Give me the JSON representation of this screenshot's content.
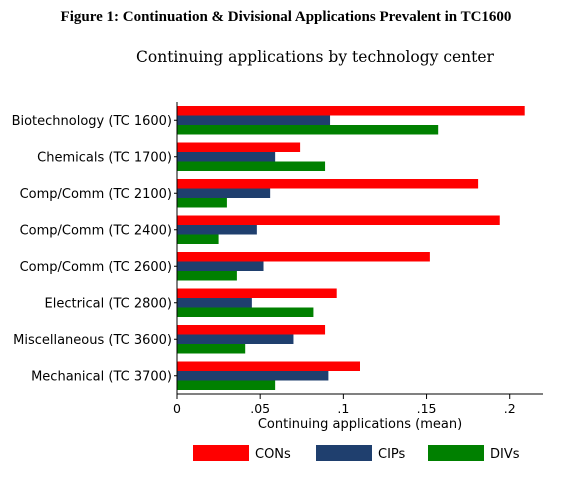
{
  "figure_caption": "Figure 1: Continuation & Divisional Applications Prevalent in TC1600",
  "chart_data": {
    "type": "bar",
    "orientation": "horizontal",
    "title": "Continuing applications by technology center",
    "xlabel": "Continuing applications (mean)",
    "ylabel": "",
    "xlim": [
      0,
      0.22
    ],
    "xticks": [
      0,
      0.05,
      0.1,
      0.15,
      0.2
    ],
    "xtick_labels": [
      "0",
      ".05",
      ".1",
      ".15",
      ".2"
    ],
    "grid": false,
    "legend_position": "bottom",
    "categories": [
      "Biotechnology (TC 1600)",
      "Chemicals (TC 1700)",
      "Comp/Comm (TC 2100)",
      "Comp/Comm (TC 2400)",
      "Comp/Comm (TC 2600)",
      "Electrical (TC 2800)",
      "Miscellaneous (TC 3600)",
      "Mechanical (TC 3700)"
    ],
    "series": [
      {
        "name": "CONs",
        "color": "#ff0000",
        "values": [
          0.209,
          0.074,
          0.181,
          0.194,
          0.152,
          0.096,
          0.089,
          0.11
        ]
      },
      {
        "name": "CIPs",
        "color": "#1f3f6e",
        "values": [
          0.092,
          0.059,
          0.056,
          0.048,
          0.052,
          0.045,
          0.07,
          0.091
        ]
      },
      {
        "name": "DIVs",
        "color": "#008000",
        "values": [
          0.157,
          0.089,
          0.03,
          0.025,
          0.036,
          0.082,
          0.041,
          0.059
        ]
      }
    ]
  }
}
